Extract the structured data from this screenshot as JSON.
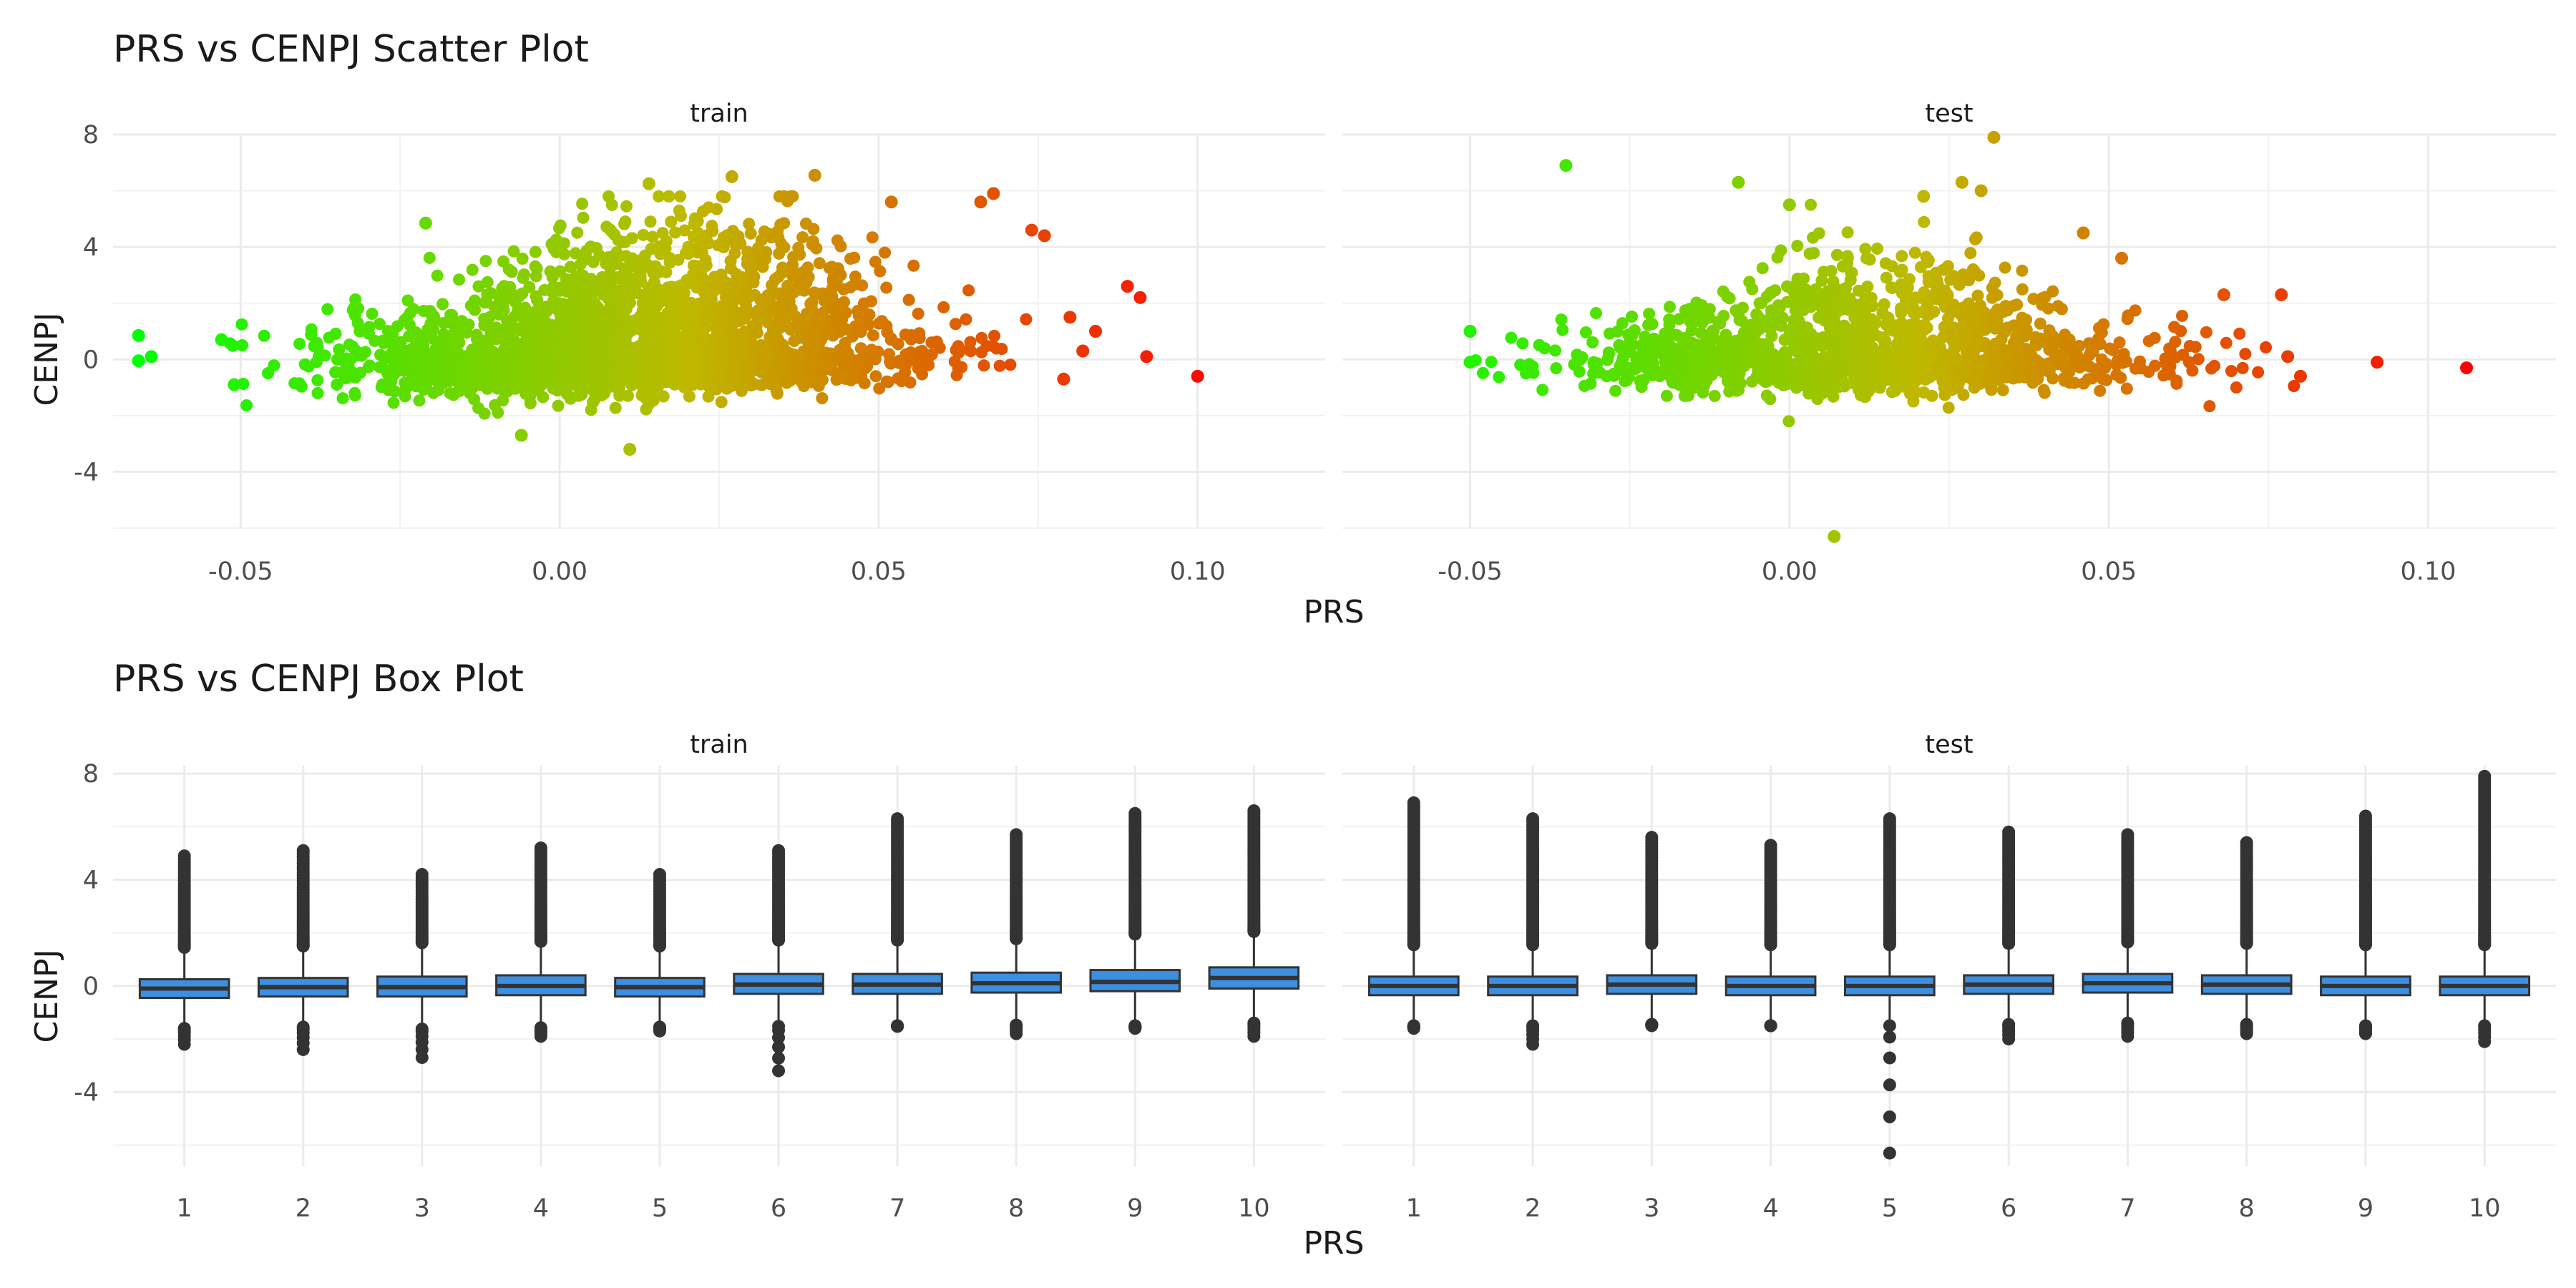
{
  "chart_data": [
    {
      "type": "scatter",
      "title": "PRS vs CENPJ Scatter Plot",
      "xlabel": "PRS",
      "ylabel": "CENPJ",
      "facets": [
        "train",
        "test"
      ],
      "xlim": [
        -0.07,
        0.12
      ],
      "ylim": [
        -6,
        8
      ],
      "x_ticks": [
        -0.05,
        0.0,
        0.05,
        0.1
      ],
      "x_tick_labels": [
        "-0.05",
        "0.00",
        "0.05",
        "0.10"
      ],
      "y_ticks": [
        -4,
        0,
        4,
        8
      ],
      "y_tick_labels": [
        "-4",
        "0",
        "4",
        "8"
      ],
      "grid": true,
      "color_scale": {
        "low": "#00ff00",
        "high": "#ff0000",
        "maps": "PRS"
      },
      "series": [
        {
          "facet": "train",
          "points": [
            {
              "x": -0.066,
              "y": 0.85
            },
            {
              "x": -0.064,
              "y": 0.1
            },
            {
              "x": -0.066,
              "y": -0.05
            },
            {
              "x": -0.053,
              "y": 0.7
            },
            {
              "x": -0.051,
              "y": -0.9
            },
            {
              "x": -0.021,
              "y": 4.85
            },
            {
              "x": 0.011,
              "y": -3.2
            },
            {
              "x": -0.006,
              "y": -2.7
            },
            {
              "x": 0.014,
              "y": 6.25
            },
            {
              "x": 0.027,
              "y": 6.5
            },
            {
              "x": 0.04,
              "y": 6.55
            },
            {
              "x": 0.052,
              "y": 5.6
            },
            {
              "x": 0.066,
              "y": 5.6
            },
            {
              "x": 0.068,
              "y": 5.9
            },
            {
              "x": 0.074,
              "y": 4.6
            },
            {
              "x": 0.076,
              "y": 4.4
            },
            {
              "x": 0.089,
              "y": 2.6
            },
            {
              "x": 0.091,
              "y": 2.2
            },
            {
              "x": 0.084,
              "y": 1.0
            },
            {
              "x": 0.092,
              "y": 0.1
            },
            {
              "x": 0.1,
              "y": -0.6
            },
            {
              "x": 0.08,
              "y": 1.5
            },
            {
              "x": 0.082,
              "y": 0.3
            },
            {
              "x": 0.079,
              "y": -0.7
            }
          ]
        },
        {
          "facet": "test",
          "points": [
            {
              "x": -0.035,
              "y": 6.9
            },
            {
              "x": -0.05,
              "y": 1.0
            },
            {
              "x": -0.05,
              "y": -0.1
            },
            {
              "x": 0.007,
              "y": -6.3
            },
            {
              "x": 0.032,
              "y": 7.9
            },
            {
              "x": 0.027,
              "y": 6.3
            },
            {
              "x": 0.021,
              "y": 5.8
            },
            {
              "x": 0.03,
              "y": 6.0
            },
            {
              "x": 0.046,
              "y": 4.5
            },
            {
              "x": 0.052,
              "y": 3.6
            },
            {
              "x": 0.068,
              "y": 2.3
            },
            {
              "x": 0.077,
              "y": 2.3
            },
            {
              "x": 0.092,
              "y": -0.1
            },
            {
              "x": 0.106,
              "y": -0.3
            },
            {
              "x": 0.08,
              "y": -0.6
            },
            {
              "x": 0.078,
              "y": 0.1
            },
            {
              "x": -0.008,
              "y": 6.3
            },
            {
              "x": 0.0,
              "y": 5.5
            }
          ]
        }
      ]
    },
    {
      "type": "box",
      "title": "PRS vs CENPJ Box Plot",
      "xlabel": "PRS",
      "ylabel": "CENPJ",
      "facets": [
        "train",
        "test"
      ],
      "categories": [
        "1",
        "2",
        "3",
        "4",
        "5",
        "6",
        "7",
        "8",
        "9",
        "10"
      ],
      "ylim": [
        -6.8,
        8.3
      ],
      "y_ticks": [
        -4,
        0,
        4,
        8
      ],
      "y_tick_labels": [
        "-4",
        "0",
        "4",
        "8"
      ],
      "fill": "#3d8fe0",
      "series": [
        {
          "facet": "train",
          "boxes": [
            {
              "category": "1",
              "q1": -0.45,
              "median": -0.1,
              "q3": 0.25,
              "upper_outliers_to": 4.9,
              "lower_outliers_to": -2.2
            },
            {
              "category": "2",
              "q1": -0.4,
              "median": -0.05,
              "q3": 0.3,
              "upper_outliers_to": 5.1,
              "lower_outliers_to": -2.4
            },
            {
              "category": "3",
              "q1": -0.4,
              "median": -0.05,
              "q3": 0.35,
              "upper_outliers_to": 4.2,
              "lower_outliers_to": -2.7
            },
            {
              "category": "4",
              "q1": -0.35,
              "median": 0.0,
              "q3": 0.4,
              "upper_outliers_to": 5.2,
              "lower_outliers_to": -1.9
            },
            {
              "category": "5",
              "q1": -0.4,
              "median": -0.05,
              "q3": 0.3,
              "upper_outliers_to": 4.2,
              "lower_outliers_to": -1.7
            },
            {
              "category": "6",
              "q1": -0.3,
              "median": 0.05,
              "q3": 0.45,
              "upper_outliers_to": 5.1,
              "lower_outliers_to": -3.2
            },
            {
              "category": "7",
              "q1": -0.3,
              "median": 0.05,
              "q3": 0.45,
              "upper_outliers_to": 6.3,
              "lower_outliers_to": -1.5
            },
            {
              "category": "8",
              "q1": -0.25,
              "median": 0.1,
              "q3": 0.5,
              "upper_outliers_to": 5.7,
              "lower_outliers_to": -1.8
            },
            {
              "category": "9",
              "q1": -0.2,
              "median": 0.15,
              "q3": 0.6,
              "upper_outliers_to": 6.5,
              "lower_outliers_to": -1.6
            },
            {
              "category": "10",
              "q1": -0.1,
              "median": 0.3,
              "q3": 0.7,
              "upper_outliers_to": 6.6,
              "lower_outliers_to": -1.9
            }
          ]
        },
        {
          "facet": "test",
          "boxes": [
            {
              "category": "1",
              "q1": -0.35,
              "median": 0.0,
              "q3": 0.35,
              "upper_outliers_to": 6.9,
              "lower_outliers_to": -1.6
            },
            {
              "category": "2",
              "q1": -0.35,
              "median": 0.0,
              "q3": 0.35,
              "upper_outliers_to": 6.3,
              "lower_outliers_to": -2.2
            },
            {
              "category": "3",
              "q1": -0.3,
              "median": 0.05,
              "q3": 0.4,
              "upper_outliers_to": 5.6,
              "lower_outliers_to": -1.5
            },
            {
              "category": "4",
              "q1": -0.35,
              "median": 0.0,
              "q3": 0.35,
              "upper_outliers_to": 5.3,
              "lower_outliers_to": -1.5
            },
            {
              "category": "5",
              "q1": -0.35,
              "median": 0.0,
              "q3": 0.35,
              "upper_outliers_to": 6.3,
              "lower_outliers_to": -6.3
            },
            {
              "category": "6",
              "q1": -0.3,
              "median": 0.05,
              "q3": 0.4,
              "upper_outliers_to": 5.8,
              "lower_outliers_to": -2.0
            },
            {
              "category": "7",
              "q1": -0.25,
              "median": 0.1,
              "q3": 0.45,
              "upper_outliers_to": 5.7,
              "lower_outliers_to": -1.9
            },
            {
              "category": "8",
              "q1": -0.3,
              "median": 0.05,
              "q3": 0.4,
              "upper_outliers_to": 5.4,
              "lower_outliers_to": -1.8
            },
            {
              "category": "9",
              "q1": -0.35,
              "median": 0.0,
              "q3": 0.35,
              "upper_outliers_to": 6.4,
              "lower_outliers_to": -1.8
            },
            {
              "category": "10",
              "q1": -0.35,
              "median": 0.0,
              "q3": 0.35,
              "upper_outliers_to": 7.9,
              "lower_outliers_to": -2.1
            }
          ]
        }
      ]
    }
  ]
}
